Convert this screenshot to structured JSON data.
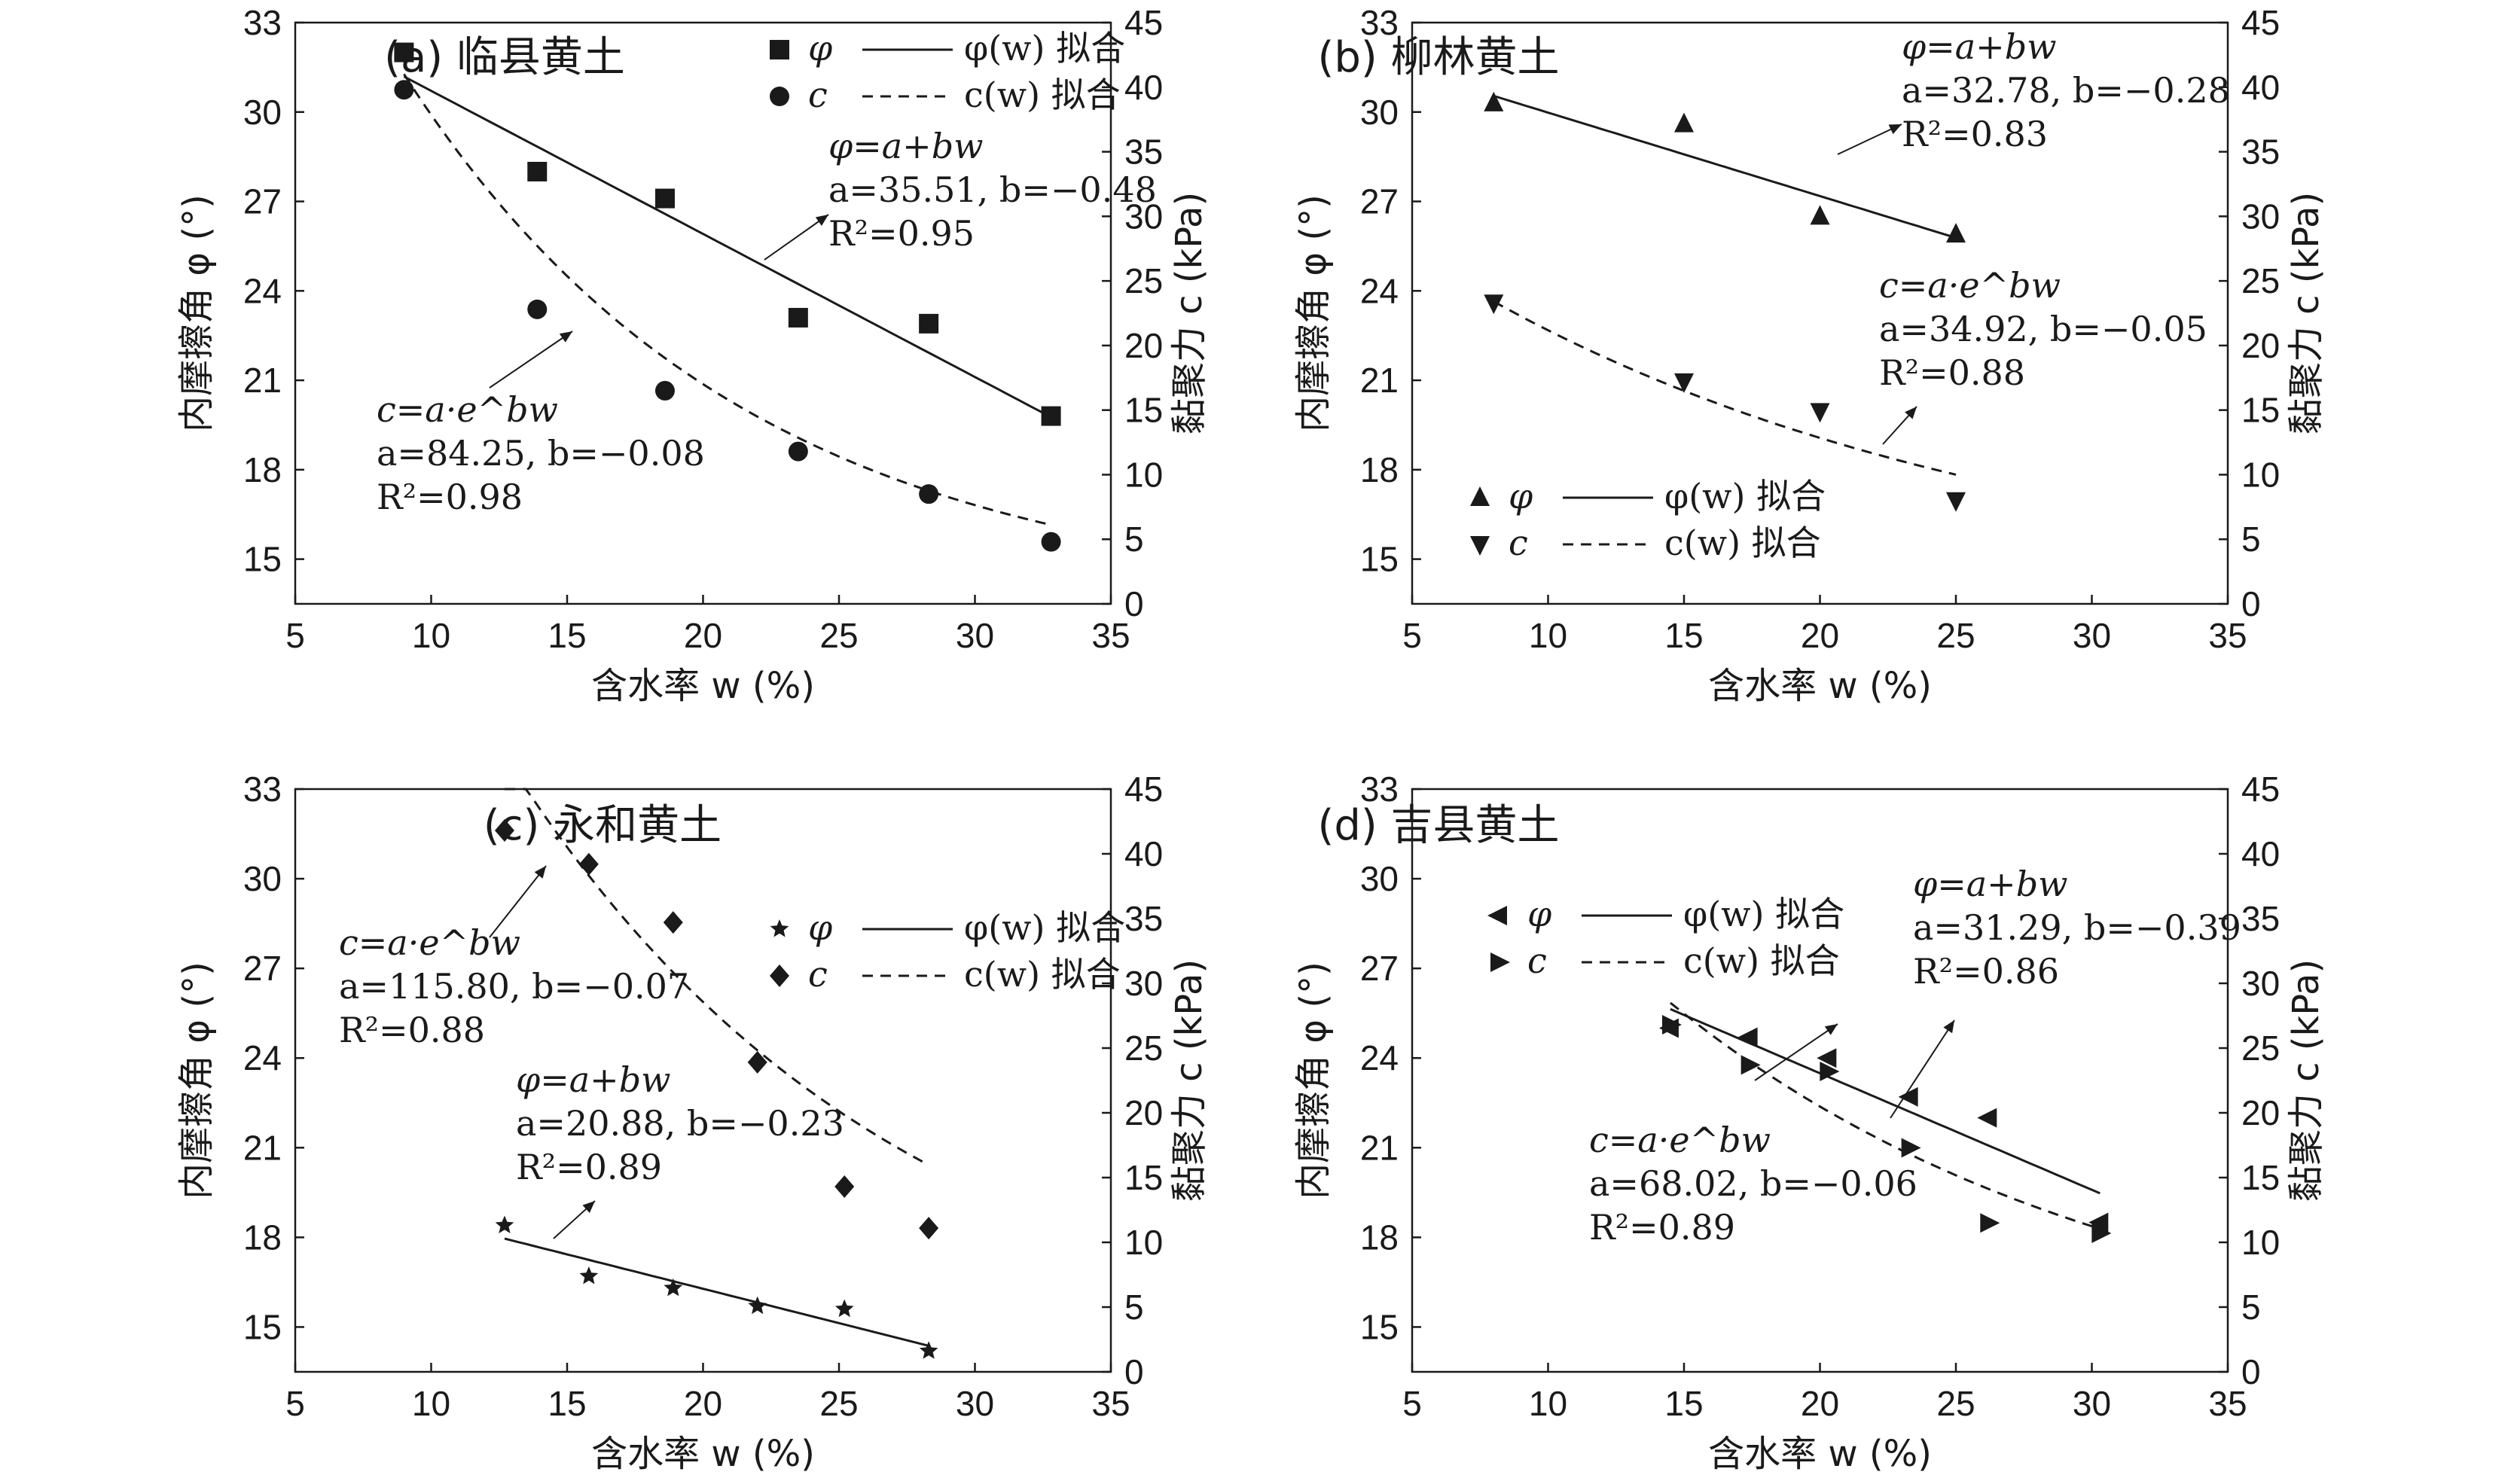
{
  "colors": {
    "ink": "#1a1a1a",
    "background": "#ffffff"
  },
  "chart_data": [
    {
      "type": "scatter",
      "panel": "a",
      "title": "(a) 临县黄土",
      "xlabel": "含水率 w (%)",
      "ylabel": "内摩擦角 φ (°)",
      "y2label": "黏聚力 c (kPa)",
      "xlim": [
        5,
        35
      ],
      "ylim": [
        13.5,
        33
      ],
      "y2lim": [
        0,
        45
      ],
      "xticks": [
        "5",
        "10",
        "15",
        "20",
        "25",
        "30",
        "35"
      ],
      "yticks": [
        "15",
        "18",
        "21",
        "24",
        "27",
        "30",
        "33"
      ],
      "y2ticks": [
        "0",
        "5",
        "10",
        "15",
        "20",
        "25",
        "30",
        "35",
        "40",
        "45"
      ],
      "legend_position": "top-right",
      "series": [
        {
          "name": "φ",
          "axis": "left",
          "marker": "square",
          "x": [
            9.0,
            13.9,
            18.6,
            23.5,
            28.3,
            32.8
          ],
          "y": [
            32.0,
            28.0,
            27.1,
            23.1,
            22.9,
            19.8
          ]
        },
        {
          "name": "c",
          "axis": "right",
          "marker": "circle",
          "x": [
            9.0,
            13.9,
            18.6,
            23.5,
            28.3,
            32.8
          ],
          "y": [
            39.8,
            22.8,
            16.5,
            11.8,
            8.5,
            4.8
          ]
        }
      ],
      "fits": [
        {
          "name": "φ(w) 拟合",
          "axis": "left",
          "model": "linear",
          "style": "solid",
          "a": 35.51,
          "b": -0.48,
          "x_range": [
            9.0,
            32.8
          ]
        },
        {
          "name": "c(w) 拟合",
          "axis": "right",
          "model": "exponential",
          "style": "dashed",
          "a": 84.25,
          "b": -0.08,
          "x_range": [
            9.0,
            32.8
          ]
        }
      ],
      "annotations": [
        {
          "lines": [
            "φ=a+bw",
            "a=35.51, b=−0.48",
            "R²=0.95"
          ]
        },
        {
          "lines": [
            "c=a·e^bw",
            "a=84.25, b=−0.08",
            "R²=0.98"
          ]
        }
      ]
    },
    {
      "type": "scatter",
      "panel": "b",
      "title": "(b) 柳林黄土",
      "xlabel": "含水率 w (%)",
      "ylabel": "内摩擦角 φ (°)",
      "y2label": "黏聚力 c (kPa)",
      "xlim": [
        5,
        35
      ],
      "ylim": [
        13.5,
        33
      ],
      "y2lim": [
        0,
        45
      ],
      "xticks": [
        "5",
        "10",
        "15",
        "20",
        "25",
        "30",
        "35"
      ],
      "yticks": [
        "15",
        "18",
        "21",
        "24",
        "27",
        "30",
        "33"
      ],
      "y2ticks": [
        "0",
        "5",
        "10",
        "15",
        "20",
        "25",
        "30",
        "35",
        "40",
        "45"
      ],
      "legend_position": "bottom-left",
      "series": [
        {
          "name": "φ",
          "axis": "left",
          "marker": "triangle-up",
          "x": [
            8.0,
            15.0,
            20.0,
            25.0
          ],
          "y": [
            30.3,
            29.6,
            26.5,
            25.9
          ]
        },
        {
          "name": "c",
          "axis": "right",
          "marker": "triangle-down",
          "x": [
            8.0,
            15.0,
            20.0,
            25.0
          ],
          "y": [
            23.3,
            17.2,
            14.9,
            8.0
          ]
        }
      ],
      "fits": [
        {
          "name": "φ(w) 拟合",
          "axis": "left",
          "model": "linear",
          "style": "solid",
          "a": 32.78,
          "b": -0.28,
          "x_range": [
            8.0,
            25.0
          ]
        },
        {
          "name": "c(w) 拟合",
          "axis": "right",
          "model": "exponential",
          "style": "dashed",
          "a": 34.92,
          "b": -0.05,
          "x_range": [
            8.0,
            25.0
          ]
        }
      ],
      "annotations": [
        {
          "lines": [
            "φ=a+bw",
            "a=32.78, b=−0.28",
            "R²=0.83"
          ]
        },
        {
          "lines": [
            "c=a·e^bw",
            "a=34.92, b=−0.05",
            "R²=0.88"
          ]
        }
      ]
    },
    {
      "type": "scatter",
      "panel": "c",
      "title": "(c) 永和黄土",
      "xlabel": "含水率 w (%)",
      "ylabel": "内摩擦角 φ (°)",
      "y2label": "黏聚力 c (kPa)",
      "xlim": [
        5,
        35
      ],
      "ylim": [
        13.5,
        33
      ],
      "y2lim": [
        0,
        45
      ],
      "xticks": [
        "5",
        "10",
        "15",
        "20",
        "25",
        "30",
        "35"
      ],
      "yticks": [
        "15",
        "18",
        "21",
        "24",
        "27",
        "30",
        "33"
      ],
      "y2ticks": [
        "0",
        "5",
        "10",
        "15",
        "20",
        "25",
        "30",
        "35",
        "40",
        "45"
      ],
      "legend_position": "center-right",
      "series": [
        {
          "name": "φ",
          "axis": "left",
          "marker": "star",
          "x": [
            12.7,
            15.8,
            18.9,
            22.0,
            25.2,
            28.3
          ],
          "y": [
            18.4,
            16.7,
            16.3,
            15.7,
            15.6,
            14.2
          ]
        },
        {
          "name": "c",
          "axis": "right",
          "marker": "diamond",
          "x": [
            12.7,
            15.8,
            18.9,
            22.0,
            25.2,
            28.3
          ],
          "y": [
            41.8,
            39.2,
            34.7,
            23.9,
            14.3,
            11.1
          ]
        }
      ],
      "fits": [
        {
          "name": "φ(w) 拟合",
          "axis": "left",
          "model": "linear",
          "style": "solid",
          "a": 20.88,
          "b": -0.23,
          "x_range": [
            12.7,
            28.3
          ]
        },
        {
          "name": "c(w) 拟合",
          "axis": "right",
          "model": "exponential",
          "style": "dashed",
          "a": 115.8,
          "b": -0.07,
          "x_range": [
            12.7,
            28.3
          ]
        }
      ],
      "annotations": [
        {
          "lines": [
            "c=a·e^bw",
            "a=115.80, b=−0.07",
            "R²=0.88"
          ]
        },
        {
          "lines": [
            "φ=a+bw",
            "a=20.88, b=−0.23",
            "R²=0.89"
          ]
        }
      ]
    },
    {
      "type": "scatter",
      "panel": "d",
      "title": "(d) 吉县黄土",
      "xlabel": "含水率 w (%)",
      "ylabel": "内摩擦角 φ (°)",
      "y2label": "黏聚力 c (kPa)",
      "xlim": [
        5,
        35
      ],
      "ylim": [
        13.5,
        33
      ],
      "y2lim": [
        0,
        45
      ],
      "xticks": [
        "5",
        "10",
        "15",
        "20",
        "25",
        "30",
        "35"
      ],
      "yticks": [
        "15",
        "18",
        "21",
        "24",
        "27",
        "30",
        "33"
      ],
      "y2ticks": [
        "0",
        "5",
        "10",
        "15",
        "20",
        "25",
        "30",
        "35",
        "40",
        "45"
      ],
      "legend_position": "top-left",
      "series": [
        {
          "name": "φ",
          "axis": "left",
          "marker": "triangle-left",
          "x": [
            14.5,
            17.4,
            20.3,
            23.3,
            26.2,
            30.3
          ],
          "y": [
            25.0,
            24.7,
            24.0,
            22.7,
            22.0,
            18.5
          ]
        },
        {
          "name": "c",
          "axis": "right",
          "marker": "triangle-right",
          "x": [
            14.5,
            17.4,
            20.3,
            23.3,
            26.2,
            30.3
          ],
          "y": [
            26.8,
            23.7,
            23.2,
            17.3,
            11.5,
            10.7
          ]
        }
      ],
      "fits": [
        {
          "name": "φ(w) 拟合",
          "axis": "left",
          "model": "linear",
          "style": "solid",
          "a": 31.29,
          "b": -0.39,
          "x_range": [
            14.5,
            30.3
          ]
        },
        {
          "name": "c(w) 拟合",
          "axis": "right",
          "model": "exponential",
          "style": "dashed",
          "a": 68.02,
          "b": -0.06,
          "x_range": [
            14.5,
            30.3
          ]
        }
      ],
      "annotations": [
        {
          "lines": [
            "φ=a+bw",
            "a=31.29, b=−0.39",
            "R²=0.86"
          ]
        },
        {
          "lines": [
            "c=a·e^bw",
            "a=68.02, b=−0.06",
            "R²=0.89"
          ]
        }
      ]
    }
  ]
}
